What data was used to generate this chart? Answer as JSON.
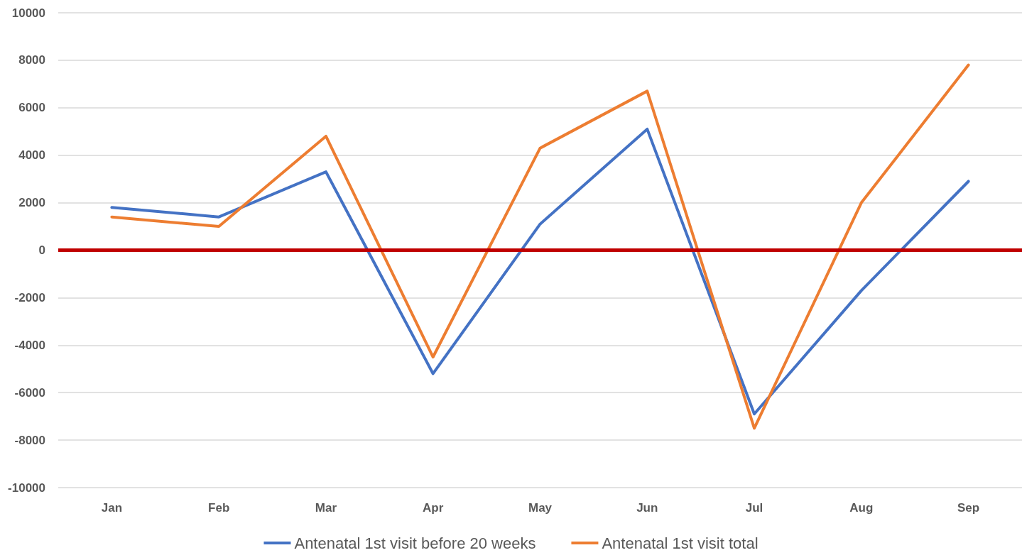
{
  "chart_data": {
    "type": "line",
    "categories": [
      "Jan",
      "Feb",
      "Mar",
      "Apr",
      "May",
      "Jun",
      "Jul",
      "Aug",
      "Sep"
    ],
    "series": [
      {
        "name": "Antenatal 1st visit before 20 weeks",
        "color": "#4472c4",
        "values": [
          1800,
          1400,
          3300,
          -5200,
          1100,
          5100,
          -6900,
          -1700,
          2900
        ]
      },
      {
        "name": "Antenatal 1st visit total",
        "color": "#ed7d31",
        "values": [
          1400,
          1000,
          4800,
          -4500,
          4300,
          6700,
          -7500,
          2000,
          7800
        ]
      }
    ],
    "ylim": [
      -10000,
      10000
    ],
    "yticks": [
      -10000,
      -8000,
      -6000,
      -4000,
      -2000,
      0,
      2000,
      4000,
      6000,
      8000,
      10000
    ],
    "grid": "y",
    "legend": "bottom",
    "marker": "none",
    "line_style": "solid",
    "ref_lines": [
      {
        "axis": "y",
        "value": 0,
        "label": null,
        "color": "#c00000"
      }
    ]
  }
}
